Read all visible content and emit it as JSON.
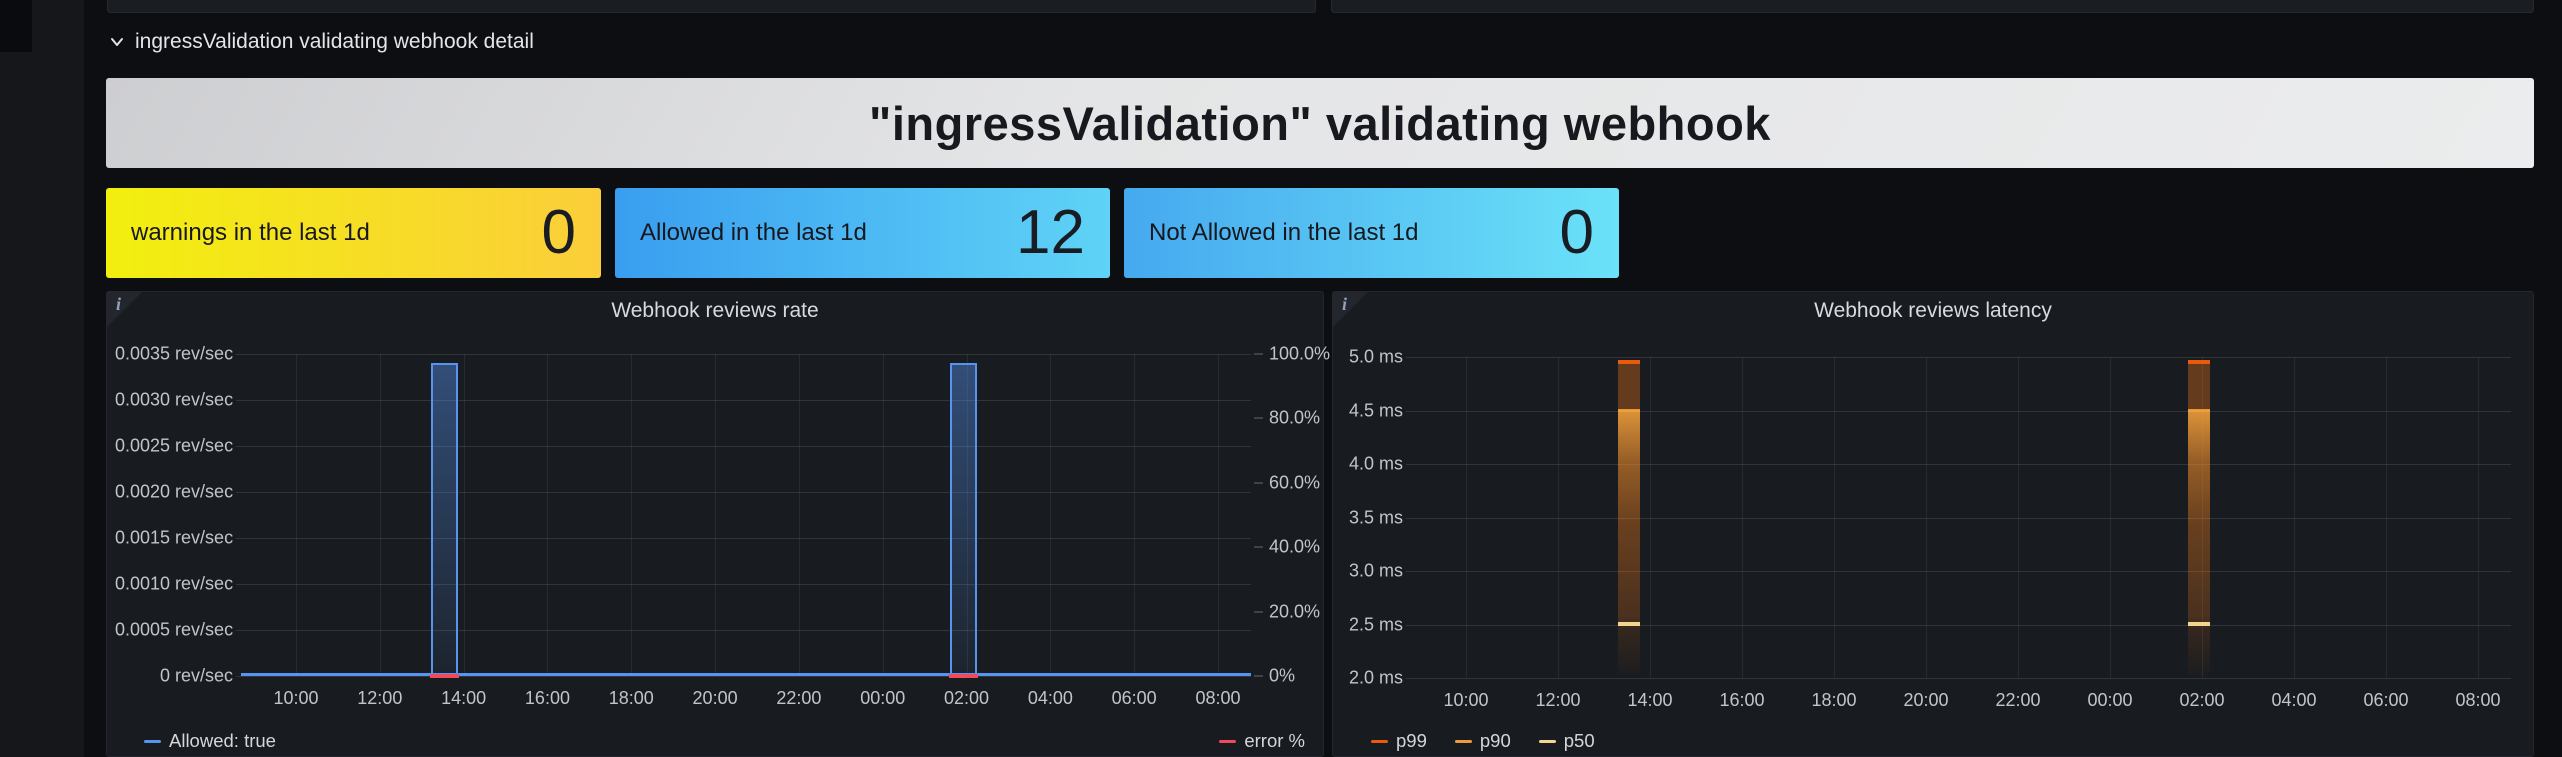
{
  "row_header": {
    "title": "ingressValidation validating webhook detail",
    "icon": "chevron-down-icon"
  },
  "title_panel": {
    "text": "\"ingressValidation\" validating webhook"
  },
  "stats": [
    {
      "label": "warnings in the last 1d",
      "value": "0",
      "gradient": [
        "#f2ef0e",
        "#fbce3a"
      ]
    },
    {
      "label": "Allowed in the last 1d",
      "value": "12",
      "gradient": [
        "#399ef0",
        "#5fd3f6"
      ]
    },
    {
      "label": "Not Allowed in the last 1d",
      "value": "0",
      "gradient": [
        "#46a9ef",
        "#6be2f8"
      ]
    }
  ],
  "chart_data": [
    {
      "type": "line",
      "title": "Webhook reviews rate",
      "x": [
        "10:00",
        "12:00",
        "14:00",
        "16:00",
        "18:00",
        "20:00",
        "22:00",
        "00:00",
        "02:00",
        "04:00",
        "06:00",
        "08:00"
      ],
      "y_left": {
        "unit": "rev/sec",
        "min": 0,
        "max": 0.0035,
        "ticks": [
          "0.0035 rev/sec",
          "0.0030 rev/sec",
          "0.0025 rev/sec",
          "0.0020 rev/sec",
          "0.0015 rev/sec",
          "0.0010 rev/sec",
          "0.0005 rev/sec",
          "0 rev/sec"
        ]
      },
      "y_right": {
        "unit": "percent",
        "min": 0,
        "max": 100,
        "ticks": [
          "100.0%",
          "80.0%",
          "60.0%",
          "40.0%",
          "20.0%",
          "0%"
        ]
      },
      "series": [
        {
          "name": "Allowed: true",
          "color": "#5794F2",
          "baseline": 0,
          "spikes": [
            {
              "time": "13:32",
              "peak": 0.0034
            },
            {
              "time": "01:56",
              "peak": 0.0034
            }
          ]
        },
        {
          "name": "error %",
          "color": "#F2495C",
          "axis": "right",
          "baseline": 0,
          "marks": [
            {
              "time": "13:32"
            },
            {
              "time": "01:56"
            }
          ]
        }
      ],
      "legend": [
        {
          "label": "Allowed: true",
          "color": "#5794F2",
          "align": "left"
        },
        {
          "label": "error %",
          "color": "#F2495C",
          "align": "right"
        }
      ],
      "grid": true
    },
    {
      "type": "bar",
      "title": "Webhook reviews latency",
      "x": [
        "10:00",
        "12:00",
        "14:00",
        "16:00",
        "18:00",
        "20:00",
        "22:00",
        "00:00",
        "02:00",
        "04:00",
        "06:00",
        "08:00"
      ],
      "y_left": {
        "unit": "ms",
        "min": 2.0,
        "max": 5.0,
        "ticks": [
          "5.0 ms",
          "4.5 ms",
          "4.0 ms",
          "3.5 ms",
          "3.0 ms",
          "2.5 ms",
          "2.0 ms"
        ]
      },
      "events": [
        {
          "time": "13:32",
          "p99": 4.97,
          "p90": 4.5,
          "p50": 2.5,
          "low": 2.03
        },
        {
          "time": "01:56",
          "p99": 4.97,
          "p90": 4.5,
          "p50": 2.5,
          "low": 2.03
        }
      ],
      "legend": [
        {
          "label": "p99",
          "color": "#E85B0C",
          "align": "left"
        },
        {
          "label": "p90",
          "color": "#EF9A3C",
          "align": "left"
        },
        {
          "label": "p50",
          "color": "#F2D58F",
          "align": "left"
        }
      ],
      "grid": true
    }
  ]
}
